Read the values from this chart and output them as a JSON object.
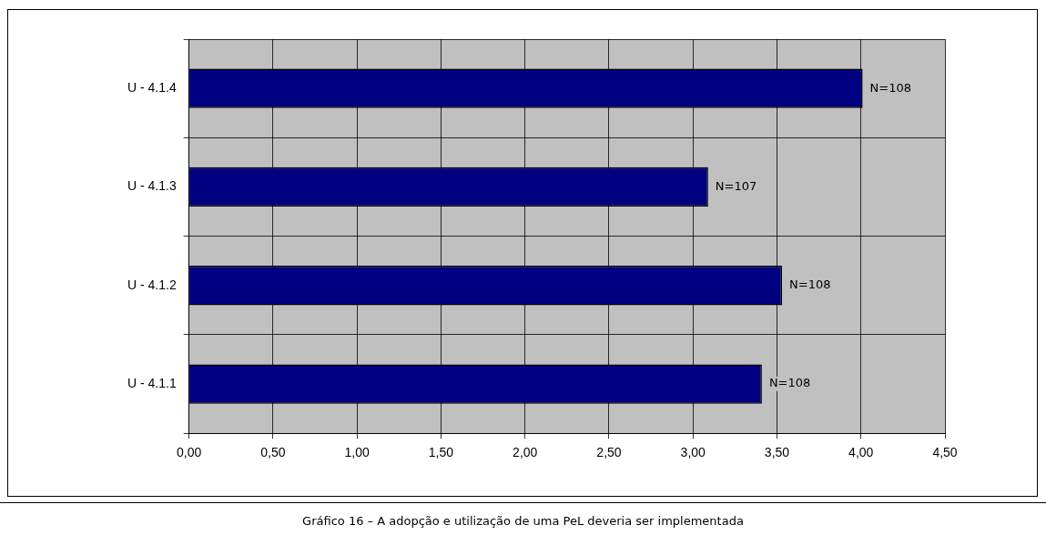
{
  "chart_data": {
    "type": "bar",
    "orientation": "horizontal",
    "categories": [
      "U - 4.1.4",
      "U - 4.1.3",
      "U - 4.1.2",
      "U - 4.1.1"
    ],
    "values": [
      4.01,
      3.09,
      3.53,
      3.41
    ],
    "color": "#000080",
    "xlim": [
      0,
      4.5
    ],
    "xticks": [
      {
        "value": 0,
        "label": "0,00"
      },
      {
        "value": 0.5,
        "label": "0,50"
      },
      {
        "value": 1,
        "label": "1,00"
      },
      {
        "value": 1.5,
        "label": "1,50"
      },
      {
        "value": 2,
        "label": "2,00"
      },
      {
        "value": 2.5,
        "label": "2,50"
      },
      {
        "value": 3,
        "label": "3,00"
      },
      {
        "value": 3.5,
        "label": "3,50"
      },
      {
        "value": 4,
        "label": "4,00"
      },
      {
        "value": 4.5,
        "label": "4,50"
      }
    ],
    "grid": true,
    "legend": false,
    "annotations": [
      {
        "text": "N=108",
        "x": 4.01,
        "y": "U - 4.1.4"
      },
      {
        "text": "N=107",
        "x": 3.09,
        "y": "U - 4.1.3"
      },
      {
        "text": "N=108",
        "x": 3.53,
        "y": "U - 4.1.2"
      },
      {
        "text": "N=108",
        "x": 3.41,
        "y": "U - 4.1.1"
      },
      "Gráfico 16 – A adopção e utilização de uma PeL deveria ser implementada"
    ]
  }
}
